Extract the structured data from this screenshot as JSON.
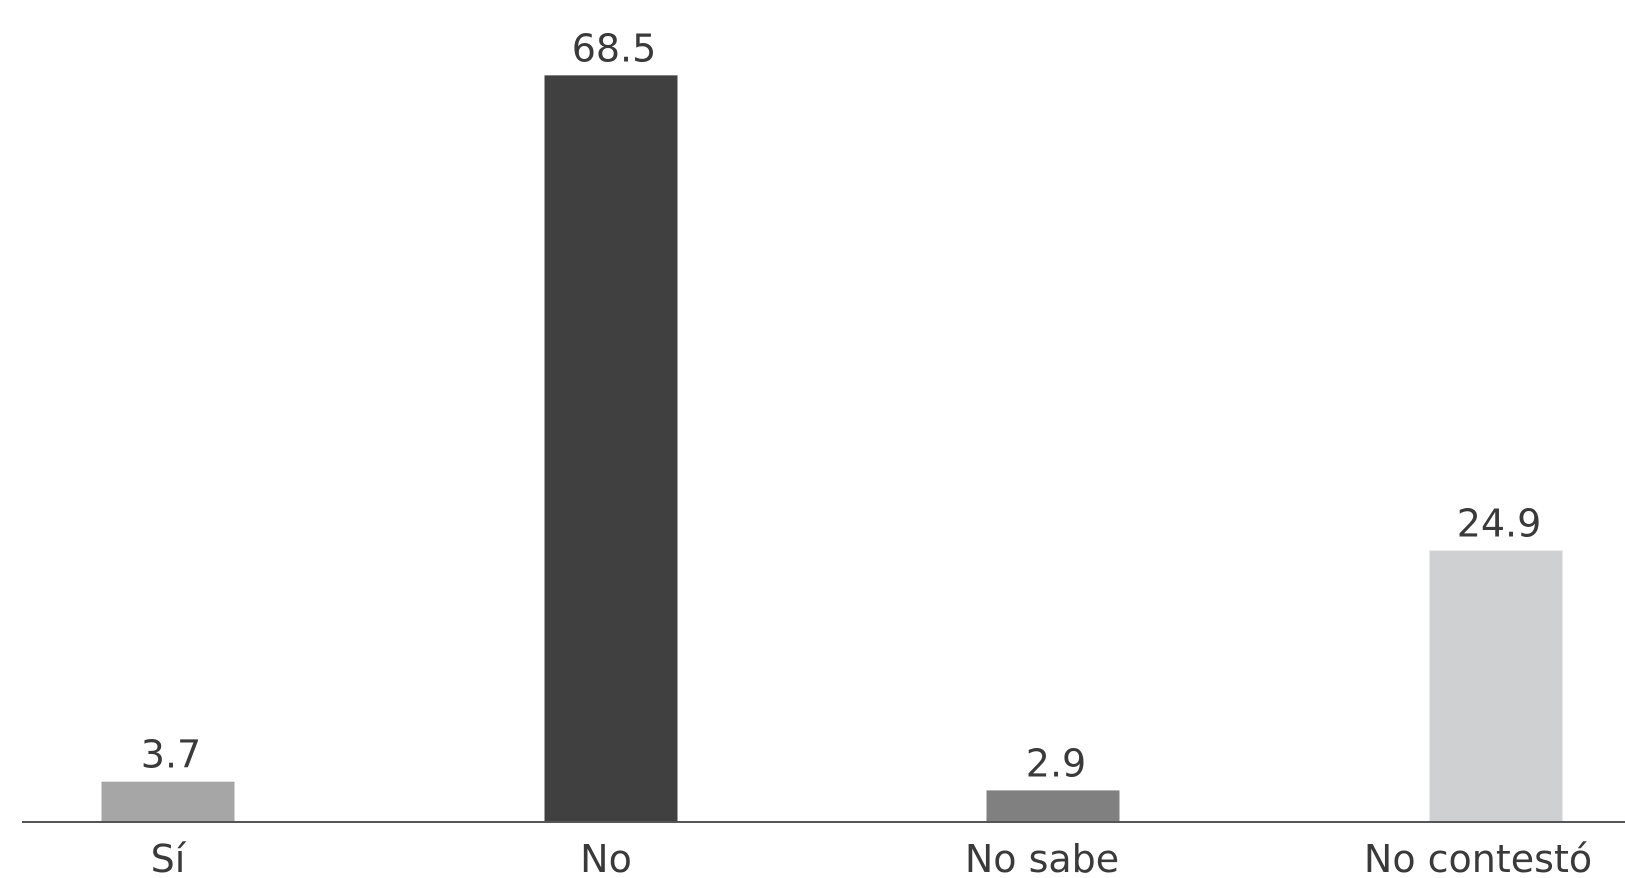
{
  "chart_data": {
    "type": "bar",
    "categories": [
      "Sí",
      "No",
      "No sabe",
      "No contestó"
    ],
    "values": [
      3.7,
      68.5,
      2.9,
      24.9
    ],
    "value_labels": [
      "3.7",
      "68.5",
      "2.9",
      "24.9"
    ],
    "colors": [
      "#a6a6a6",
      "#404040",
      "#808080",
      "#cfd0d1"
    ],
    "axis_color": "#555555",
    "title": "",
    "xlabel": "",
    "ylabel": "",
    "ylim": [
      0,
      72
    ],
    "grid": false,
    "legend": "none"
  }
}
